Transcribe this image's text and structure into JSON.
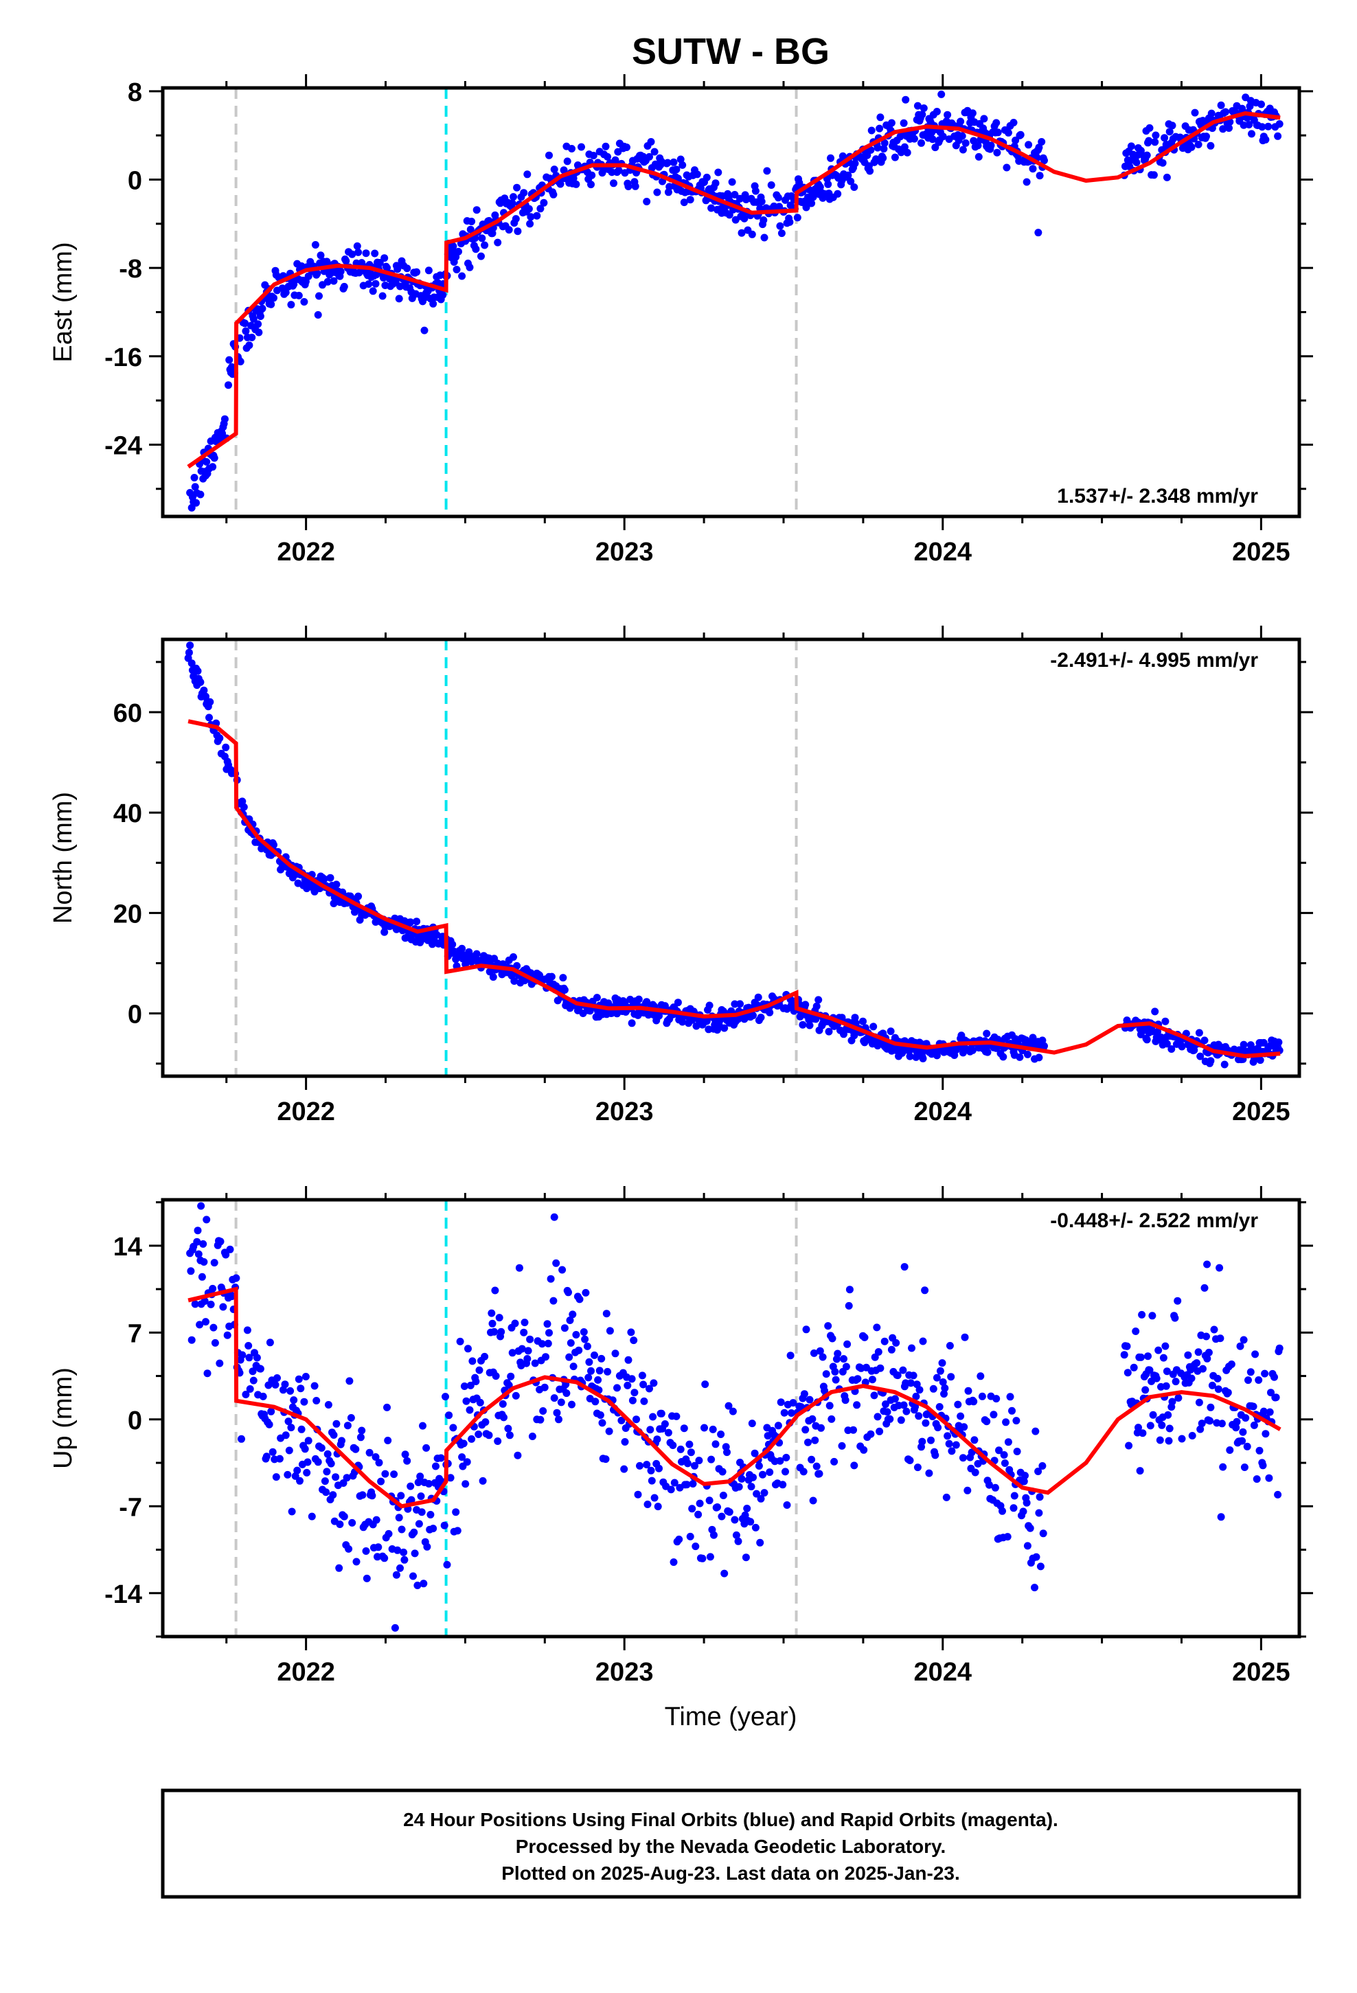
{
  "title": "SUTW - BG",
  "colors": {
    "final": "#0000ff",
    "model": "#ff0000",
    "offset_equipment": "#c8c8c8",
    "offset_earthquake": "#00e5ee",
    "frame": "#000000"
  },
  "x_ticks": [
    2022,
    2023,
    2024,
    2025
  ],
  "x_range": [
    2021.55,
    2025.12
  ],
  "x_label": "Time (year)",
  "chart_data": [
    {
      "type": "scatter",
      "component": "East",
      "ylabel": "East (mm)",
      "yticks": [
        8,
        0,
        -8,
        -16,
        -24
      ],
      "ylim": [
        -30.5,
        8.3
      ],
      "rate": "1.537+/- 2.348 mm/yr",
      "rate_position": "bottom-right",
      "offsets": [
        {
          "x": 2021.78,
          "kind": "equipment"
        },
        {
          "x": 2022.44,
          "kind": "earthquake"
        },
        {
          "x": 2023.54,
          "kind": "equipment"
        }
      ],
      "gaps": [
        [
          2024.32,
          2024.57
        ]
      ],
      "model": {
        "x": [
          2021.63,
          2021.78,
          2021.781,
          2021.9,
          2022.0,
          2022.1,
          2022.2,
          2022.3,
          2022.44,
          2022.441,
          2022.5,
          2022.6,
          2022.7,
          2022.8,
          2022.9,
          2023.0,
          2023.1,
          2023.2,
          2023.3,
          2023.4,
          2023.54,
          2023.541,
          2023.65,
          2023.75,
          2023.85,
          2023.95,
          2024.05,
          2024.15,
          2024.25,
          2024.35,
          2024.45,
          2024.55,
          2024.65,
          2024.75,
          2024.85,
          2024.95,
          2025.06
        ],
        "y": [
          -26.0,
          -23.0,
          -13.0,
          -9.5,
          -8.2,
          -7.8,
          -8.0,
          -8.8,
          -10.0,
          -5.7,
          -5.3,
          -3.8,
          -1.8,
          0.3,
          1.3,
          1.3,
          0.5,
          -0.7,
          -1.9,
          -3.0,
          -2.8,
          -1.2,
          0.8,
          2.8,
          4.3,
          4.8,
          4.6,
          3.7,
          2.3,
          0.7,
          -0.1,
          0.2,
          1.5,
          3.4,
          5.2,
          6.0,
          5.6
        ]
      },
      "trend": {
        "x": [
          2021.63,
          2021.75,
          2021.76,
          2021.8,
          2021.85,
          2021.9,
          2022.0,
          2022.1,
          2022.2,
          2022.3,
          2022.43,
          2022.45,
          2022.6,
          2022.8,
          2022.95,
          2023.1,
          2023.25,
          2023.4,
          2023.5,
          2023.6,
          2023.75,
          2023.9,
          2024.0,
          2024.1,
          2024.2,
          2024.3,
          2024.55,
          2024.7,
          2024.85,
          2024.95,
          2025.06
        ],
        "y": [
          -29.5,
          -22.0,
          -17.0,
          -14.5,
          -12.0,
          -10.0,
          -8.4,
          -7.9,
          -8.1,
          -8.8,
          -10.0,
          -7.0,
          -3.8,
          0.3,
          1.6,
          1.0,
          -1.0,
          -2.9,
          -2.5,
          -1.0,
          2.0,
          4.5,
          4.9,
          4.5,
          3.3,
          1.8,
          1.0,
          2.8,
          5.0,
          6.0,
          5.5
        ]
      },
      "noise": 1.0,
      "outliers": [
        {
          "x": 2024.3,
          "y": -4.8
        }
      ]
    },
    {
      "type": "scatter",
      "component": "North",
      "ylabel": "North (mm)",
      "yticks": [
        60,
        40,
        20,
        0
      ],
      "ylim": [
        -12.5,
        74.5
      ],
      "rate": "-2.491+/- 4.995 mm/yr",
      "rate_position": "top-right",
      "offsets": [
        {
          "x": 2021.78,
          "kind": "equipment"
        },
        {
          "x": 2022.44,
          "kind": "earthquake"
        },
        {
          "x": 2023.54,
          "kind": "equipment"
        }
      ],
      "gaps": [
        [
          2024.32,
          2024.57
        ]
      ],
      "model": {
        "x": [
          2021.63,
          2021.72,
          2021.78,
          2021.781,
          2021.85,
          2021.95,
          2022.05,
          2022.15,
          2022.25,
          2022.35,
          2022.44,
          2022.441,
          2022.55,
          2022.65,
          2022.75,
          2022.85,
          2022.95,
          2023.05,
          2023.15,
          2023.25,
          2023.35,
          2023.45,
          2023.54,
          2023.541,
          2023.65,
          2023.75,
          2023.85,
          2023.95,
          2024.05,
          2024.15,
          2024.25,
          2024.35,
          2024.45,
          2024.55,
          2024.65,
          2024.75,
          2024.85,
          2024.95,
          2025.06
        ],
        "y": [
          58.2,
          57.0,
          53.8,
          41.0,
          35.0,
          29.5,
          25.5,
          22.0,
          18.8,
          16.3,
          17.5,
          8.3,
          9.5,
          8.8,
          5.5,
          2.0,
          1.0,
          1.1,
          0.3,
          -0.6,
          -0.3,
          1.5,
          4.1,
          1.0,
          -1.0,
          -3.5,
          -6.0,
          -6.8,
          -6.0,
          -5.8,
          -6.8,
          -7.8,
          -6.2,
          -2.5,
          -2.0,
          -4.5,
          -7.5,
          -8.5,
          -8.0
        ]
      },
      "trend": {
        "x": [
          2021.63,
          2021.66,
          2021.7,
          2021.74,
          2021.78,
          2021.8,
          2021.85,
          2021.95,
          2022.05,
          2022.15,
          2022.25,
          2022.35,
          2022.43,
          2022.45,
          2022.55,
          2022.65,
          2022.75,
          2022.85,
          2022.95,
          2023.05,
          2023.15,
          2023.25,
          2023.35,
          2023.45,
          2023.53,
          2023.56,
          2023.65,
          2023.75,
          2023.85,
          2023.95,
          2024.05,
          2024.15,
          2024.25,
          2024.32,
          2024.57,
          2024.65,
          2024.75,
          2024.85,
          2024.95,
          2025.06
        ],
        "y": [
          72.0,
          66.0,
          60.0,
          52.0,
          46.0,
          40.0,
          34.5,
          29.0,
          25.5,
          22.0,
          18.5,
          16.0,
          15.5,
          12.0,
          10.0,
          9.0,
          6.0,
          2.0,
          1.0,
          1.0,
          0.0,
          -1.0,
          -0.5,
          1.0,
          2.5,
          0.0,
          -1.5,
          -4.0,
          -6.5,
          -7.5,
          -6.5,
          -6.0,
          -6.5,
          -6.5,
          -2.5,
          -3.5,
          -5.5,
          -7.5,
          -8.0,
          -6.5
        ]
      },
      "noise": 1.1,
      "outliers": []
    },
    {
      "type": "scatter",
      "component": "Up",
      "ylabel": "Up (mm)",
      "yticks": [
        14,
        7,
        0,
        -7,
        -14
      ],
      "ylim": [
        -17.5,
        17.7
      ],
      "rate": "-0.448+/- 2.522 mm/yr",
      "rate_position": "top-right",
      "offsets": [
        {
          "x": 2021.78,
          "kind": "equipment"
        },
        {
          "x": 2022.44,
          "kind": "earthquake"
        },
        {
          "x": 2023.54,
          "kind": "equipment"
        }
      ],
      "gaps": [
        [
          2024.32,
          2024.57
        ]
      ],
      "model": {
        "x": [
          2021.63,
          2021.78,
          2021.781,
          2021.9,
          2022.0,
          2022.1,
          2022.2,
          2022.3,
          2022.4,
          2022.44,
          2022.441,
          2022.55,
          2022.65,
          2022.75,
          2022.85,
          2022.95,
          2023.05,
          2023.15,
          2023.25,
          2023.33,
          2023.45,
          2023.54,
          2023.541,
          2023.65,
          2023.75,
          2023.85,
          2023.95,
          2024.05,
          2024.15,
          2024.25,
          2024.33,
          2024.45,
          2024.55,
          2024.65,
          2024.75,
          2024.85,
          2024.95,
          2025.06
        ],
        "y": [
          9.6,
          10.5,
          1.5,
          1.0,
          0.0,
          -2.5,
          -5.0,
          -7.0,
          -6.5,
          -5.0,
          -2.5,
          0.5,
          2.5,
          3.4,
          3.0,
          1.5,
          -1.0,
          -3.6,
          -5.2,
          -5.0,
          -2.5,
          0.2,
          0.3,
          2.2,
          2.7,
          2.2,
          1.0,
          -1.2,
          -3.5,
          -5.5,
          -5.9,
          -3.5,
          0.0,
          1.8,
          2.2,
          1.9,
          0.8,
          -0.8
        ]
      },
      "trend": {
        "x": [
          2021.63,
          2021.78,
          2021.79,
          2021.9,
          2022.0,
          2022.1,
          2022.2,
          2022.3,
          2022.4,
          2022.44,
          2022.45,
          2022.55,
          2022.65,
          2022.75,
          2022.85,
          2022.95,
          2023.05,
          2023.15,
          2023.25,
          2023.33,
          2023.45,
          2023.55,
          2023.65,
          2023.75,
          2023.85,
          2023.95,
          2024.05,
          2024.15,
          2024.25,
          2024.32,
          2024.57,
          2024.65,
          2024.75,
          2024.85,
          2024.95,
          2025.06
        ],
        "y": [
          11.0,
          10.0,
          3.5,
          1.0,
          -1.5,
          -4.0,
          -7.0,
          -8.5,
          -8.0,
          -6.0,
          -2.0,
          1.5,
          3.5,
          5.0,
          5.0,
          3.0,
          0.5,
          -3.0,
          -5.5,
          -6.0,
          -3.0,
          0.5,
          2.5,
          2.8,
          2.0,
          1.5,
          -0.5,
          -3.0,
          -6.5,
          -8.0,
          3.0,
          3.5,
          3.0,
          2.0,
          1.0,
          -1.0
        ],
        "noise_scale": 1.0
      },
      "noise": 3.2,
      "outliers": [
        {
          "x": 2021.67,
          "y": 17.2
        },
        {
          "x": 2022.78,
          "y": 16.3
        },
        {
          "x": 2022.28,
          "y": -16.8
        },
        {
          "x": 2024.83,
          "y": 12.5
        },
        {
          "x": 2023.88,
          "y": 12.3
        }
      ]
    }
  ],
  "footer": {
    "line1": "24 Hour Positions Using Final Orbits (blue) and Rapid Orbits (magenta).",
    "line2": "Processed by the Nevada Geodetic Laboratory.",
    "line3": "Plotted on 2025-Aug-23. Last data on 2025-Jan-23."
  }
}
